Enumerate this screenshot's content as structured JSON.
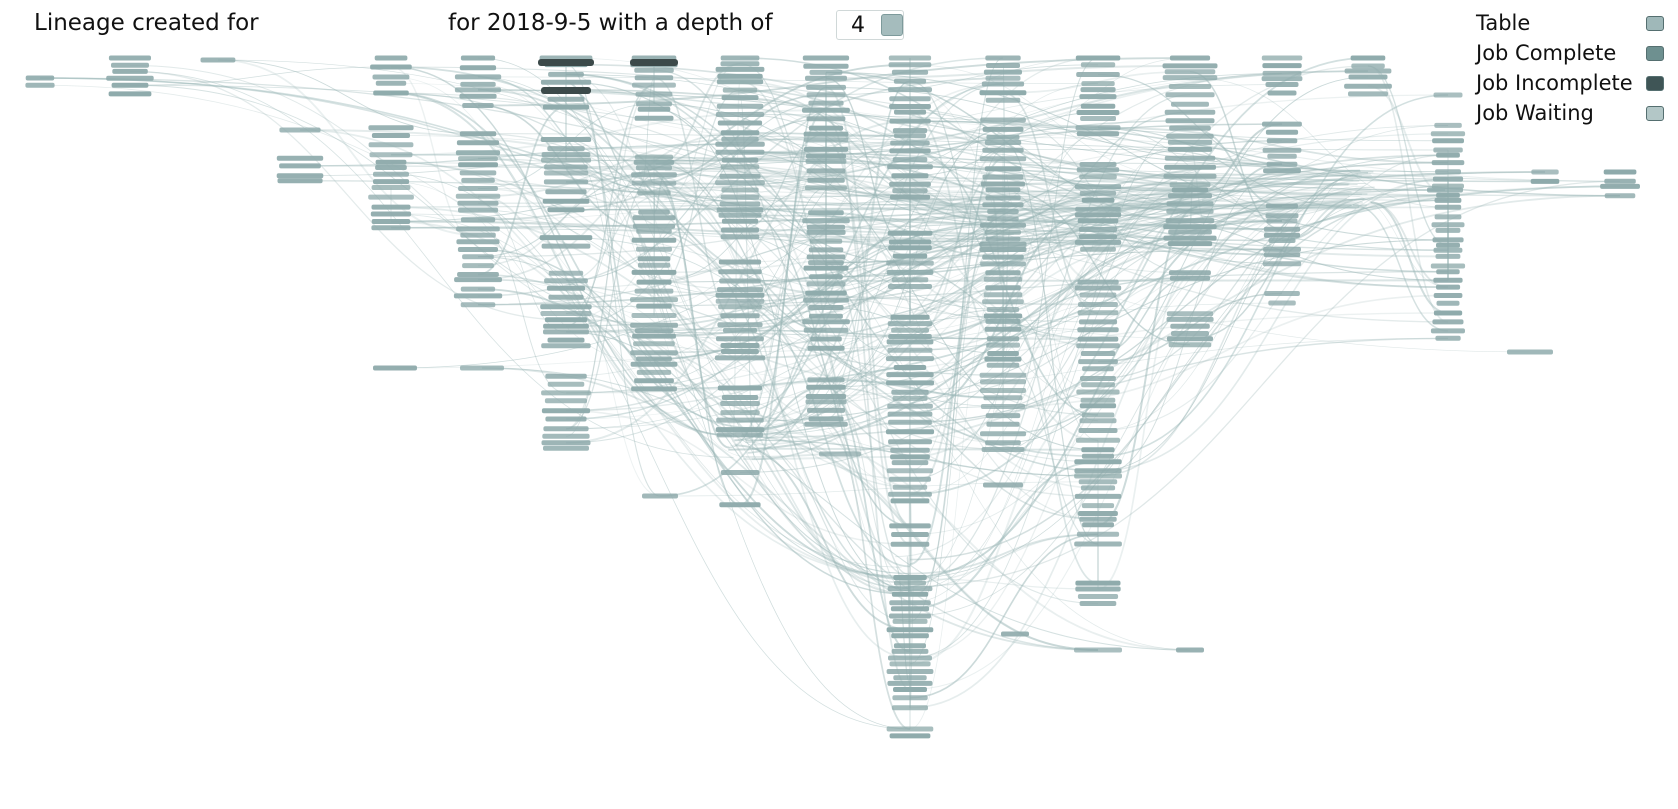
{
  "header": {
    "title_prefix": "Lineage created for",
    "title_suffix": "for 2018-9-5 with a depth of",
    "depth_value": "4"
  },
  "legend": [
    {
      "label": "Table",
      "color": "#9fb8b9"
    },
    {
      "label": "Job Complete",
      "color": "#6e9090"
    },
    {
      "label": "Job Incomplete",
      "color": "#3f5556"
    },
    {
      "label": "Job Waiting",
      "color": "#b3c7c7"
    }
  ],
  "colors": {
    "node": "#8eaaab",
    "node_dark": "#3c4a4a",
    "edge": "#9ab6b6",
    "background": "#ffffff"
  }
}
